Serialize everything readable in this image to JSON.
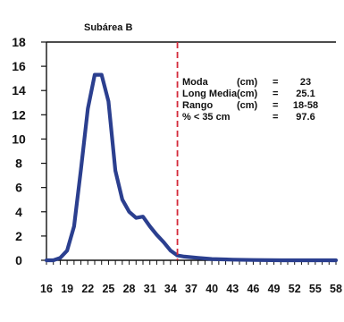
{
  "chart_data": {
    "type": "line",
    "title": "Subárea B",
    "xlabel": "",
    "ylabel": "",
    "ylim": [
      0,
      18
    ],
    "xlim": [
      16,
      58
    ],
    "x_ticks": [
      16,
      19,
      22,
      25,
      28,
      31,
      34,
      37,
      40,
      43,
      46,
      49,
      52,
      55,
      58
    ],
    "y_ticks": [
      0,
      2,
      4,
      6,
      8,
      10,
      12,
      14,
      16,
      18
    ],
    "series": [
      {
        "color": "#2b3f8f",
        "x": [
          16,
          17,
          18,
          19,
          20,
          21,
          22,
          23,
          24,
          25,
          26,
          27,
          28,
          29,
          30,
          31,
          32,
          33,
          34,
          35,
          36,
          37,
          38,
          40,
          43,
          46,
          50,
          55,
          58
        ],
        "y": [
          0,
          0,
          0.2,
          0.8,
          2.8,
          7.5,
          12.5,
          15.3,
          15.3,
          13.1,
          7.4,
          5.0,
          4.0,
          3.5,
          3.6,
          2.8,
          2.1,
          1.5,
          0.8,
          0.4,
          0.3,
          0.25,
          0.2,
          0.1,
          0.05,
          0.02,
          0,
          0,
          0
        ]
      }
    ],
    "reference_line": {
      "x": 35,
      "color": "#d42a3a",
      "style": "dashed"
    },
    "annotation": [
      {
        "label": "Moda",
        "unit": "(cm)",
        "eq": "=",
        "value": "23"
      },
      {
        "label": "Long Media",
        "unit": "(cm)",
        "eq": "=",
        "value": "25.1"
      },
      {
        "label": "Rango",
        "unit": "(cm)",
        "eq": "=",
        "value": "18-58"
      },
      {
        "label": "% < 35 cm",
        "unit": "",
        "eq": "=",
        "value": "97.6"
      }
    ]
  }
}
